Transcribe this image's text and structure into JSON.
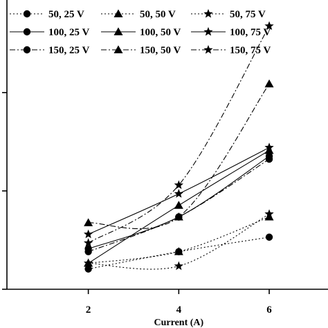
{
  "chart_data": {
    "type": "line",
    "xlabel": "Current (A)",
    "ylabel": "",
    "title": "",
    "x": [
      2,
      4,
      6
    ],
    "xticks": [
      "2",
      "4",
      "6"
    ],
    "xlim": [
      0.2,
      7.3
    ],
    "ylim": [
      0,
      100
    ],
    "yticks": [
      0,
      34,
      68
    ],
    "grid": false,
    "legend_position": "top-left",
    "series": [
      {
        "name": "50, 25 V",
        "values": [
          7,
          13,
          18
        ],
        "marker": "circle",
        "dash": "2,3"
      },
      {
        "name": "50, 50 V",
        "values": [
          9,
          13,
          25
        ],
        "marker": "triangle",
        "dash": "2,3"
      },
      {
        "name": "50, 75 V",
        "values": [
          9,
          8,
          26
        ],
        "marker": "star",
        "dash": "2,3"
      },
      {
        "name": "100, 25 V",
        "values": [
          14,
          25,
          46
        ],
        "marker": "circle",
        "dash": ""
      },
      {
        "name": "100, 50 V",
        "values": [
          9,
          29,
          48
        ],
        "marker": "triangle",
        "dash": ""
      },
      {
        "name": "100, 75 V",
        "values": [
          19,
          33,
          49
        ],
        "marker": "star",
        "dash": ""
      },
      {
        "name": "150, 25 V",
        "values": [
          13,
          25,
          45
        ],
        "marker": "circle",
        "dash": "8,3,2,3"
      },
      {
        "name": "150, 50 V",
        "values": [
          23,
          25,
          71
        ],
        "marker": "triangle",
        "dash": "8,3,2,3"
      },
      {
        "name": "150, 75 V",
        "values": [
          16,
          36,
          91
        ],
        "marker": "star",
        "dash": "8,3,2,3"
      }
    ]
  }
}
